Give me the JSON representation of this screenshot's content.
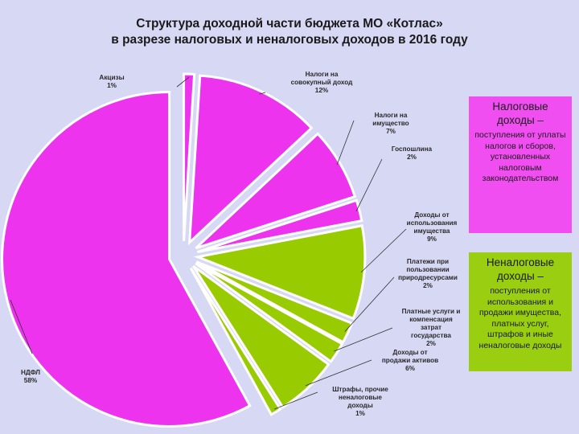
{
  "title": {
    "line1": "Структура доходной части бюджета МО «Котлас»",
    "line2": "в разрезе налоговых и неналоговых доходов в 2016 году"
  },
  "colors": {
    "background": "#d6d8f4",
    "tax": "#ee33ee",
    "nontax": "#99cc00",
    "tax_legend": "#f04ef0",
    "nontax_legend": "#9ace10"
  },
  "legend": {
    "tax": {
      "title_line1": "Налоговые",
      "title_line2": "доходы –",
      "desc": "поступления от уплаты налогов и сборов, установленных налоговым законодательством"
    },
    "nontax": {
      "title_line1": "Неналоговые",
      "title_line2": "доходы –",
      "desc": "поступления от использования и продажи имущества, платных услуг, штрафов и иные неналоговые доходы"
    }
  },
  "chart_data": {
    "type": "pie",
    "title": "Структура доходной части бюджета МО «Котлас» в разрезе налоговых и неналоговых доходов в 2016 году",
    "unit": "%",
    "legend_position": "right",
    "slices": [
      {
        "label": "Акцизы",
        "value": 1,
        "value_label": "1%",
        "group": "tax"
      },
      {
        "label": "Налоги на совокупный доход",
        "value": 12,
        "value_label": "12%",
        "group": "tax"
      },
      {
        "label": "Налоги на имущество",
        "value": 7,
        "value_label": "7%",
        "group": "tax"
      },
      {
        "label": "Госпошлина",
        "value": 2,
        "value_label": "2%",
        "group": "tax"
      },
      {
        "label": "Доходы от использования имущества",
        "value": 9,
        "value_label": "9%",
        "group": "nontax"
      },
      {
        "label": "Платежи при пользовании природресурсами",
        "value": 2,
        "value_label": "2%",
        "group": "nontax"
      },
      {
        "label": "Платные услуги и компенсация затрат государства",
        "value": 2,
        "value_label": "2%",
        "group": "nontax"
      },
      {
        "label": "Доходы от продажи активов",
        "value": 6,
        "value_label": "6%",
        "group": "nontax"
      },
      {
        "label": "Штрафы, прочие неналоговые доходы",
        "value": 1,
        "value_label": "1%",
        "group": "nontax"
      },
      {
        "label": "НДФЛ",
        "value": 58,
        "value_label": "58%",
        "group": "tax"
      }
    ]
  }
}
